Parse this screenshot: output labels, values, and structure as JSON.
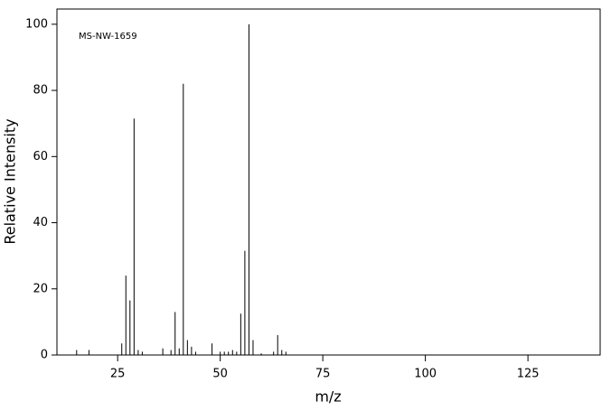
{
  "chart_data": {
    "type": "stem",
    "annotation": "MS-NW-1659",
    "xlabel": "m/z",
    "ylabel": "Relative Intensity",
    "x": [
      15,
      18,
      26,
      27,
      28,
      29,
      30,
      31,
      36,
      38,
      39,
      40,
      41,
      42,
      43,
      44,
      48,
      50,
      51,
      52,
      53,
      54,
      55,
      56,
      57,
      58,
      60,
      63,
      64,
      65,
      66
    ],
    "values": [
      1.5,
      1.5,
      3.5,
      24,
      16.5,
      71.5,
      1.5,
      1,
      2,
      1.5,
      13,
      2,
      82,
      4.5,
      2.5,
      1,
      3.5,
      1,
      1,
      1,
      1.5,
      1,
      12.5,
      31.5,
      100,
      4.5,
      0.5,
      1,
      6,
      1.5,
      1
    ],
    "color": "#000000",
    "xlim": [
      10.2,
      142.6
    ],
    "ylim": [
      0,
      104.6
    ],
    "xticks": [
      25,
      50,
      75,
      100,
      125
    ],
    "yticks": [
      0,
      20,
      40,
      60,
      80,
      100
    ]
  }
}
